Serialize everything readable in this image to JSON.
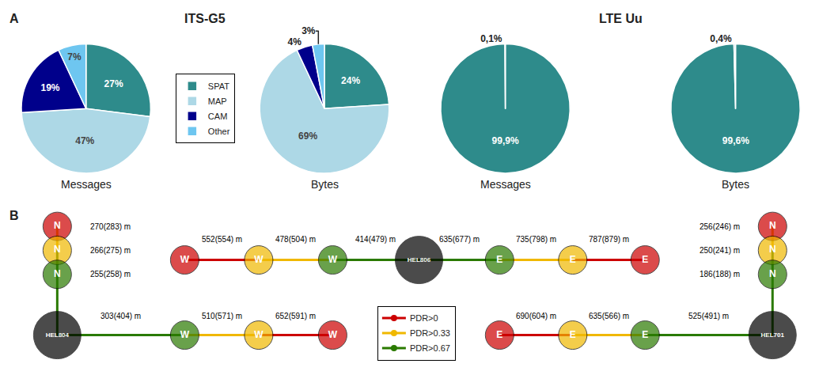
{
  "chart_data": [
    {
      "type": "pie",
      "title": "ITS-G5",
      "subtitle": "Messages",
      "categories": [
        "SPAT",
        "MAP",
        "CAM",
        "Other"
      ],
      "values": [
        27,
        47,
        19,
        7
      ],
      "value_labels": [
        "27%",
        "47%",
        "19%",
        "7%"
      ],
      "colors": [
        "#2e8b8b",
        "#add8e6",
        "#00008b",
        "#6ec6f0"
      ],
      "data_labels": true,
      "legend": "right",
      "annotations": [
        "A"
      ]
    },
    {
      "type": "pie",
      "subtitle": "Bytes",
      "categories": [
        "SPAT",
        "MAP",
        "CAM",
        "Other"
      ],
      "values": [
        24,
        69,
        4,
        3
      ],
      "value_labels": [
        "24%",
        "69%",
        "4%",
        "3%"
      ],
      "colors": [
        "#2e8b8b",
        "#add8e6",
        "#00008b",
        "#6ec6f0"
      ],
      "data_labels": true
    },
    {
      "type": "pie",
      "title": "LTE Uu",
      "subtitle": "Messages",
      "categories": [
        "SPAT",
        "Other"
      ],
      "values": [
        99.9,
        0.1
      ],
      "value_labels": [
        "99,9%",
        "0,1%"
      ],
      "colors": [
        "#2e8b8b",
        "#add8e6"
      ],
      "data_labels": true
    },
    {
      "type": "pie",
      "subtitle": "Bytes",
      "categories": [
        "SPAT",
        "Other"
      ],
      "values": [
        99.6,
        0.4
      ],
      "value_labels": [
        "99,6%",
        "0,4%"
      ],
      "colors": [
        "#2e8b8b",
        "#add8e6"
      ],
      "data_labels": true
    },
    {
      "type": "network",
      "title": "B",
      "categories": [
        "W",
        "W",
        "W",
        "HEL806",
        "E",
        "E",
        "E",
        "N",
        "N",
        "N",
        "N",
        "N",
        "N",
        "HEL804",
        "W",
        "W",
        "W",
        "E",
        "E",
        "E",
        "HEL701"
      ],
      "colors": [
        "#cc0000",
        "#f0b800",
        "#2a7a00",
        "#000000",
        "#2a7a00",
        "#f0b800",
        "#cc0000",
        "#cc0000",
        "#f0b800",
        "#2a7a00",
        "#cc0000",
        "#f0b800",
        "#2a7a00",
        "#000000",
        "#2a7a00",
        "#f0b800",
        "#cc0000",
        "#cc0000",
        "#f0b800",
        "#2a7a00",
        "#000000"
      ],
      "series": [
        {
          "name": "PDR>0",
          "color": "#cc0000"
        },
        {
          "name": "PDR>0.33",
          "color": "#f0b800"
        },
        {
          "name": "PDR>0.67",
          "color": "#2a7a00"
        }
      ],
      "annotations": [
        "552(554) m",
        "478(504) m",
        "414(479) m",
        "635(677) m",
        "735(798) m",
        "787(879) m",
        "303(404) m",
        "510(571) m",
        "652(591) m",
        "690(604) m",
        "635(566) m",
        "525(491) m",
        "270(283) m",
        "266(275) m",
        "255(258) m",
        "256(246) m",
        "250(241) m",
        "186(188) m"
      ],
      "legend": "bottom",
      "tick_labels": false,
      "marker": "circle"
    }
  ]
}
